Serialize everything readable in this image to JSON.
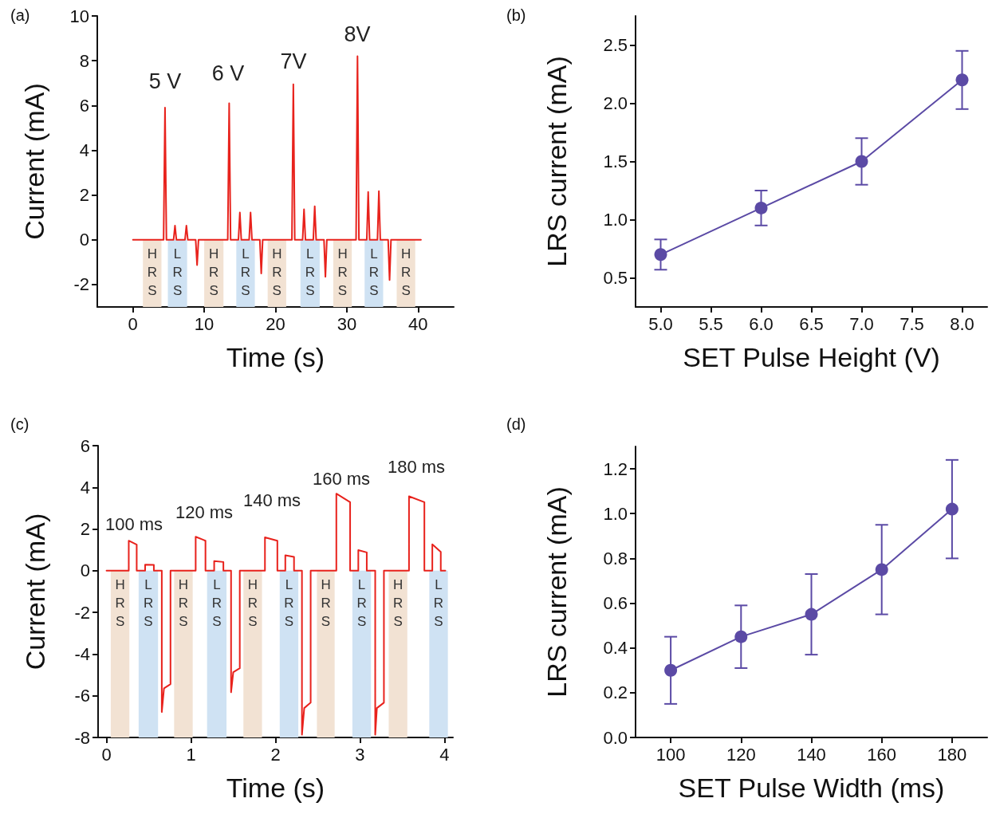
{
  "chart_data": [
    {
      "type": "line",
      "title": "(a)",
      "xlabel": "Time (s)",
      "ylabel": "Current (mA)",
      "xlim": [
        -5,
        45
      ],
      "xticks": [
        0,
        10,
        20,
        30,
        40
      ],
      "ylim": [
        -3,
        10
      ],
      "yticks": [
        -2,
        0,
        2,
        4,
        6,
        8,
        10
      ],
      "marker": "none",
      "line_style": "solid",
      "grid": false,
      "x": [
        0,
        4.3,
        4.5,
        4.7,
        5.7,
        5.9,
        6.1,
        7.3,
        7.5,
        7.7,
        8.8,
        9.0,
        9.2,
        13.3,
        13.5,
        13.7,
        14.8,
        15.0,
        15.2,
        16.3,
        16.5,
        16.7,
        17.8,
        18.0,
        18.2,
        22.3,
        22.5,
        22.7,
        23.8,
        24.0,
        24.2,
        25.3,
        25.5,
        25.7,
        26.8,
        27.0,
        27.2,
        31.3,
        31.5,
        31.7,
        32.8,
        33.0,
        33.2,
        34.3,
        34.5,
        34.7,
        35.8,
        36.0,
        36.2,
        40.4
      ],
      "series": [
        {
          "color": "#e8221c",
          "values": [
            0,
            0,
            5.9,
            0,
            0,
            0.63,
            0,
            0,
            0.63,
            0,
            0,
            -1.13,
            0,
            0,
            6.1,
            0,
            0,
            1.22,
            0,
            0,
            1.22,
            0,
            0,
            -1.5,
            0,
            0,
            6.95,
            0,
            0,
            1.36,
            0,
            0,
            1.5,
            0,
            0,
            -1.65,
            0,
            0,
            8.2,
            0,
            0,
            2.14,
            0,
            0,
            2.17,
            0,
            0,
            -1.8,
            0,
            0
          ]
        }
      ],
      "annotations": [
        "5 V",
        "6 V",
        "7V",
        "8V"
      ],
      "bands": [
        {
          "axis": "x",
          "from": 1.4,
          "to": 4.0,
          "label": "HRS",
          "color": "#f2e2d3"
        },
        {
          "axis": "x",
          "from": 4.9,
          "to": 7.6,
          "label": "LRS",
          "color": "#cfe2f3"
        },
        {
          "axis": "x",
          "from": 10.0,
          "to": 12.7,
          "label": "HRS",
          "color": "#f2e2d3"
        },
        {
          "axis": "x",
          "from": 14.5,
          "to": 17.1,
          "label": "LRS",
          "color": "#cfe2f3"
        },
        {
          "axis": "x",
          "from": 18.9,
          "to": 21.5,
          "label": "HRS",
          "color": "#f2e2d3"
        },
        {
          "axis": "x",
          "from": 23.5,
          "to": 26.2,
          "label": "LRS",
          "color": "#cfe2f3"
        },
        {
          "axis": "x",
          "from": 28.1,
          "to": 30.7,
          "label": "HRS",
          "color": "#f2e2d3"
        },
        {
          "axis": "x",
          "from": 32.5,
          "to": 35.1,
          "label": "LRS",
          "color": "#cfe2f3"
        },
        {
          "axis": "x",
          "from": 37.0,
          "to": 39.6,
          "label": "HRS",
          "color": "#f2e2d3"
        }
      ]
    },
    {
      "type": "line",
      "title": "(b)",
      "xlabel": "SET Pulse Height (V)",
      "ylabel": "LRS current (mA)",
      "xlim": [
        4.75,
        8.25
      ],
      "xticks": [
        {
          "value": 5,
          "label": "5.0"
        },
        5.5,
        {
          "value": 6,
          "label": "6.0"
        },
        6.5,
        {
          "value": 7,
          "label": "7.0"
        },
        7.5,
        {
          "value": 8,
          "label": "8.0"
        }
      ],
      "ylim": [
        0.25,
        2.75
      ],
      "yticks": [
        0.5,
        {
          "value": 1,
          "label": "1.0"
        },
        1.5,
        {
          "value": 2,
          "label": "2.0"
        },
        2.5
      ],
      "marker": "circle",
      "line_style": "solid",
      "grid": false,
      "x": [
        5,
        6,
        7,
        8
      ],
      "series": [
        {
          "color": "#5b4aa5",
          "values": [
            0.7,
            1.1,
            1.5,
            2.2
          ],
          "errors": [
            0.13,
            0.15,
            0.2,
            0.25
          ]
        }
      ]
    },
    {
      "type": "line",
      "title": "(c)",
      "xlabel": "Time (s)",
      "ylabel": "Current (mA)",
      "xlim": [
        -0.1,
        4.1
      ],
      "xticks": [
        0,
        1,
        2,
        3,
        4
      ],
      "ylim": [
        -8,
        6
      ],
      "yticks": [
        -8,
        -6,
        -4,
        -2,
        0,
        2,
        4,
        6
      ],
      "marker": "none",
      "line_style": "solid",
      "grid": false,
      "x": [
        0,
        0.263,
        0.263,
        0.357,
        0.357,
        0.457,
        0.457,
        0.56,
        0.56,
        0.654,
        0.654,
        0.68,
        0.757,
        0.757,
        1.055,
        1.055,
        1.171,
        1.171,
        1.274,
        1.274,
        1.383,
        1.383,
        1.474,
        1.474,
        1.5,
        1.577,
        1.577,
        1.875,
        1.875,
        2.022,
        2.022,
        2.116,
        2.116,
        2.219,
        2.219,
        2.313,
        2.313,
        2.34,
        2.416,
        2.416,
        2.72,
        2.72,
        2.883,
        2.883,
        2.98,
        2.98,
        3.08,
        3.08,
        3.18,
        3.18,
        3.2,
        3.283,
        3.283,
        3.58,
        3.58,
        3.762,
        3.762,
        3.856,
        3.856,
        3.956,
        3.956,
        4.01
      ],
      "series": [
        {
          "color": "#e8221c",
          "values": [
            0,
            0,
            1.44,
            1.25,
            0,
            0,
            0.29,
            0.28,
            0,
            0,
            -6.78,
            -5.64,
            -5.44,
            0,
            0,
            1.63,
            1.44,
            0,
            0,
            0.46,
            0.42,
            0,
            0,
            -5.83,
            -4.87,
            -4.68,
            0,
            0,
            1.6,
            1.44,
            0,
            0,
            0.74,
            0.66,
            0,
            0,
            -7.87,
            -6.59,
            -6.33,
            0,
            0,
            3.7,
            3.29,
            0,
            0,
            0.99,
            0.88,
            0,
            0,
            -7.87,
            -6.59,
            -6.33,
            0,
            0,
            3.57,
            3.29,
            0,
            0,
            1.27,
            0.9,
            0,
            0
          ]
        }
      ],
      "annotations": [
        "100 ms",
        "120 ms",
        "140 ms",
        "160 ms",
        "180 ms"
      ],
      "bands": [
        {
          "axis": "x",
          "from": 0.05,
          "to": 0.27,
          "label": "HRS",
          "color": "#f2e2d3"
        },
        {
          "axis": "x",
          "from": 0.38,
          "to": 0.61,
          "label": "LRS",
          "color": "#cfe2f3"
        },
        {
          "axis": "x",
          "from": 0.8,
          "to": 1.02,
          "label": "HRS",
          "color": "#f2e2d3"
        },
        {
          "axis": "x",
          "from": 1.19,
          "to": 1.42,
          "label": "LRS",
          "color": "#cfe2f3"
        },
        {
          "axis": "x",
          "from": 1.62,
          "to": 1.84,
          "label": "HRS",
          "color": "#f2e2d3"
        },
        {
          "axis": "x",
          "from": 2.05,
          "to": 2.27,
          "label": "LRS",
          "color": "#cfe2f3"
        },
        {
          "axis": "x",
          "from": 2.49,
          "to": 2.7,
          "label": "HRS",
          "color": "#f2e2d3"
        },
        {
          "axis": "x",
          "from": 2.91,
          "to": 3.13,
          "label": "LRS",
          "color": "#cfe2f3"
        },
        {
          "axis": "x",
          "from": 3.34,
          "to": 3.56,
          "label": "HRS",
          "color": "#f2e2d3"
        },
        {
          "axis": "x",
          "from": 3.82,
          "to": 4.04,
          "label": "LRS",
          "color": "#cfe2f3"
        }
      ]
    },
    {
      "type": "line",
      "title": "(d)",
      "xlabel": "SET Pulse Width (ms)",
      "ylabel": "LRS current (mA)",
      "xlim": [
        90,
        190
      ],
      "xticks": [
        100,
        120,
        140,
        160,
        180
      ],
      "ylim": [
        0,
        1.3
      ],
      "yticks": [
        {
          "value": 0,
          "label": "0.0"
        },
        0.2,
        0.4,
        0.6,
        0.8,
        {
          "value": 1,
          "label": "1.0"
        },
        1.2
      ],
      "marker": "circle",
      "line_style": "solid",
      "grid": false,
      "x": [
        100,
        120,
        140,
        160,
        180
      ],
      "series": [
        {
          "color": "#5b4aa5",
          "values": [
            0.3,
            0.45,
            0.55,
            0.75,
            1.02
          ],
          "errors": [
            0.15,
            0.14,
            0.18,
            0.2,
            0.22
          ]
        }
      ]
    }
  ]
}
